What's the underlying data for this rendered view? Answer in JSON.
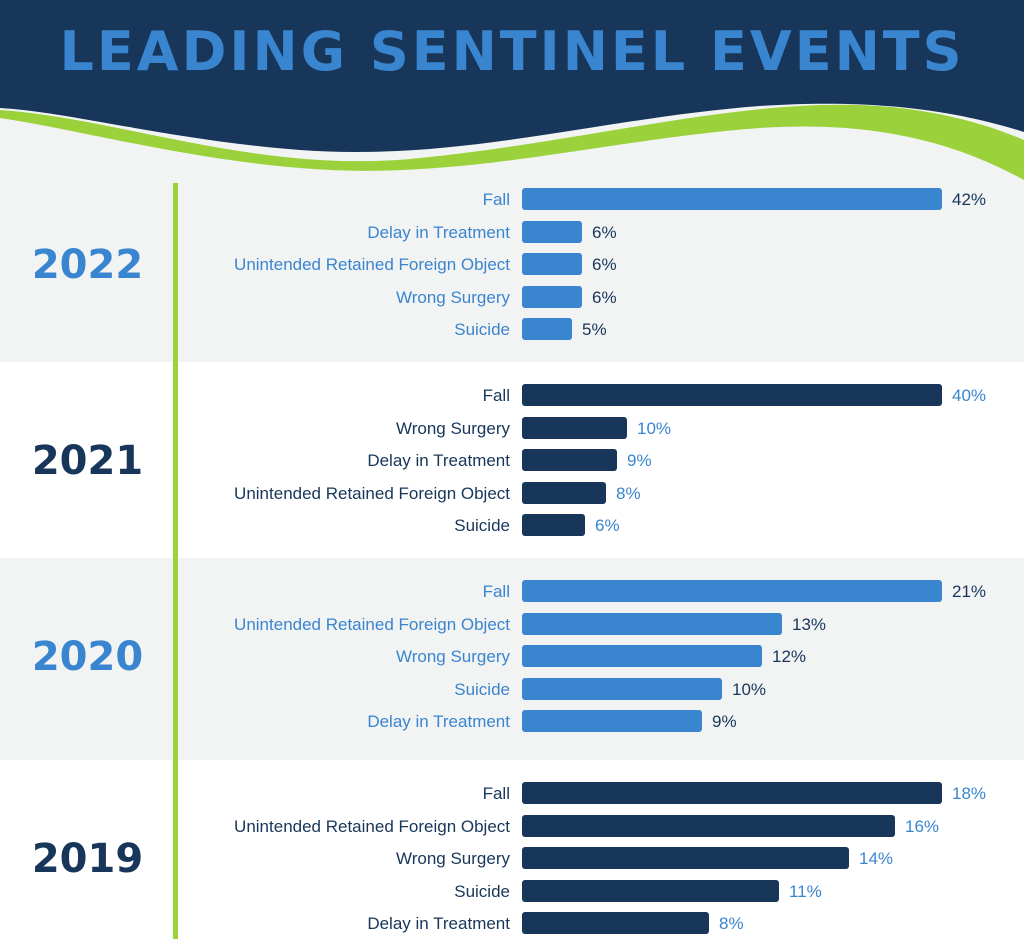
{
  "title": "LEADING SENTINEL EVENTS",
  "colors": {
    "header_bg": "#17365a",
    "accent_green": "#9bd13b",
    "light_blue": "#3a85cf",
    "dark_navy": "#17365a",
    "alt_bg_gray": "#f2f3f3",
    "alt_bg_white": "#ffffff"
  },
  "chart_data": [
    {
      "type": "bar",
      "orientation": "horizontal",
      "title": "2022",
      "categories": [
        "Fall",
        "Delay in Treatment",
        "Unintended Retained Foreign Object",
        "Wrong Surgery",
        "Suicide"
      ],
      "values": [
        42,
        6,
        6,
        6,
        5
      ],
      "value_labels": [
        "42%",
        "6%",
        "6%",
        "6%",
        "5%"
      ],
      "scale_max": 42,
      "theme": "light"
    },
    {
      "type": "bar",
      "orientation": "horizontal",
      "title": "2021",
      "categories": [
        "Fall",
        "Wrong Surgery",
        "Delay in Treatment",
        "Unintended Retained Foreign Object",
        "Suicide"
      ],
      "values": [
        40,
        10,
        9,
        8,
        6
      ],
      "value_labels": [
        "40%",
        "10%",
        "9%",
        "8%",
        "6%"
      ],
      "scale_max": 40,
      "theme": "dark"
    },
    {
      "type": "bar",
      "orientation": "horizontal",
      "title": "2020",
      "categories": [
        "Fall",
        "Unintended Retained Foreign Object",
        "Wrong Surgery",
        "Suicide",
        "Delay in Treatment"
      ],
      "values": [
        21,
        13,
        12,
        10,
        9
      ],
      "value_labels": [
        "21%",
        "13%",
        "12%",
        "10%",
        "9%"
      ],
      "scale_max": 21,
      "theme": "light"
    },
    {
      "type": "bar",
      "orientation": "horizontal",
      "title": "2019",
      "categories": [
        "Fall",
        "Unintended Retained Foreign Object",
        "Wrong Surgery",
        "Suicide",
        "Delay in Treatment"
      ],
      "values": [
        18,
        16,
        14,
        11,
        8
      ],
      "value_labels": [
        "18%",
        "16%",
        "14%",
        "11%",
        "8%"
      ],
      "scale_max": 18,
      "theme": "dark"
    }
  ]
}
